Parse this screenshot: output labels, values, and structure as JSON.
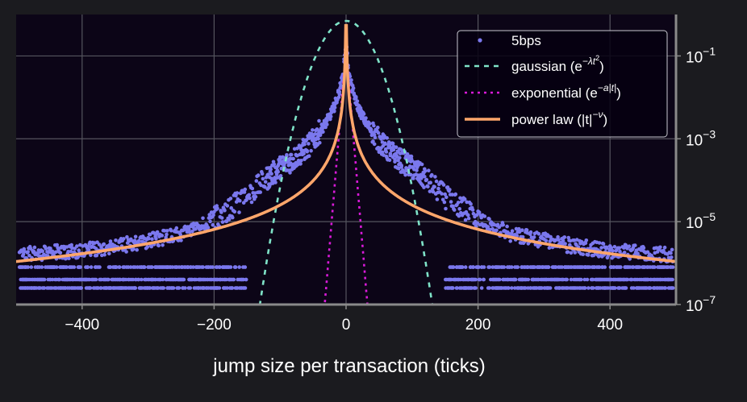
{
  "colors": {
    "background": "#1b1b1f",
    "plot_background": "#0c0517",
    "grid": "#55555e",
    "axis_spine": "#8a8a8a",
    "data_points": "#7b78ee",
    "gaussian": "#7fe3c8",
    "exponential": "#d91ad9",
    "power_law": "#ffa66b",
    "text": "#ffffff"
  },
  "chart_data": {
    "type": "scatter",
    "xlabel": "jump size per transaction (ticks)",
    "ylabel": "",
    "xlim": [
      -500,
      500
    ],
    "ylim": [
      1e-07,
      1
    ],
    "yscale": "log",
    "grid": true,
    "legend_position": "top-right",
    "y_axis_side": "right",
    "x_ticks": [
      {
        "value": -400,
        "label": "−400"
      },
      {
        "value": -200,
        "label": "−200"
      },
      {
        "value": 0,
        "label": "0"
      },
      {
        "value": 200,
        "label": "200"
      },
      {
        "value": 400,
        "label": "400"
      }
    ],
    "y_ticks": [
      {
        "value": 0.1,
        "base": "10",
        "exp": "−1"
      },
      {
        "value": 0.001,
        "base": "10",
        "exp": "−3"
      },
      {
        "value": 1e-05,
        "base": "10",
        "exp": "−5"
      },
      {
        "value": 1e-07,
        "base": "10",
        "exp": "−7"
      }
    ],
    "series": [
      {
        "name": "5bps",
        "kind": "scatter",
        "description": "empirical jump-size distribution, symmetric heavy tails",
        "points_sampled": {
          "x": [
            0,
            5,
            10,
            15,
            20,
            30,
            40,
            50,
            60,
            80,
            100,
            120,
            150,
            200,
            250,
            300,
            350,
            400,
            450,
            490
          ],
          "y": [
            0.2,
            0.03,
            0.015,
            0.008,
            0.005,
            0.0025,
            0.0015,
            0.0009,
            0.0006,
            0.00032,
            0.0002,
            0.00011,
            4e-05,
            1.2e-05,
            5e-06,
            3.5e-06,
            2.5e-06,
            2e-06,
            1.8e-06,
            1.6e-06
          ]
        },
        "floor_levels": [
          8e-07,
          4e-07,
          2.5e-07
        ]
      },
      {
        "name": "gaussian",
        "legend_label": "gaussian (e",
        "legend_sup": "−λt",
        "legend_sup2": "2",
        "legend_tail": ")",
        "kind": "line",
        "style": "dashed",
        "model": "A*exp(-lambda*t^2)",
        "params": {
          "A": 0.7,
          "lambda": 0.000924
        }
      },
      {
        "name": "exponential",
        "legend_label": "exponential (e",
        "legend_sup": "−a|t|",
        "legend_tail": ")",
        "kind": "line",
        "style": "dotted",
        "model": "A*exp(-a*|t|)",
        "params": {
          "A": 0.15,
          "a": 0.44
        }
      },
      {
        "name": "power law",
        "legend_label": "power law (|t|",
        "legend_sup": "−ν",
        "legend_tail": ")",
        "kind": "line",
        "style": "solid",
        "model": "A*|t|^(-nu)",
        "params": {
          "A": 0.2,
          "nu": 1.95
        }
      }
    ]
  }
}
